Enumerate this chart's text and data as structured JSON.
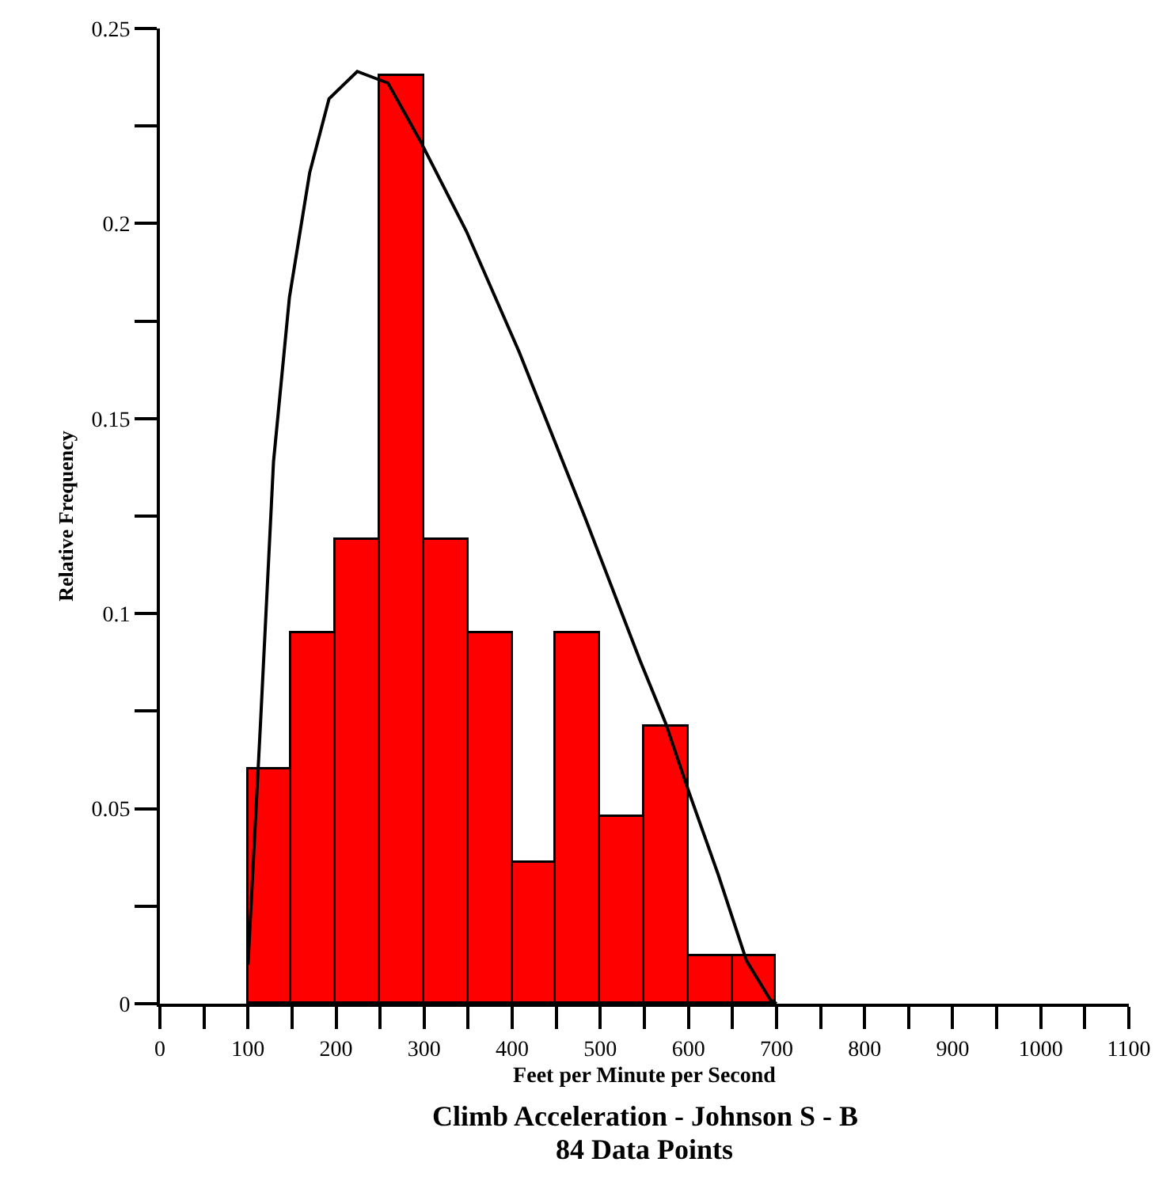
{
  "chart_data": {
    "type": "histogram",
    "title": "Climb Acceleration - Johnson S - B",
    "subtitle": "84 Data Points",
    "xlabel": "Feet per Minute per Second",
    "ylabel": "Relative Frequency",
    "bins": [
      100,
      150,
      200,
      250,
      300,
      350,
      400,
      450,
      500,
      550,
      600,
      650,
      700
    ],
    "series": [
      {
        "color": "#ff0000",
        "values": [
          0.06,
          0.095,
          0.119,
          0.238,
          0.119,
          0.095,
          0.036,
          0.095,
          0.048,
          0.071,
          0.012,
          0.012
        ]
      },
      {
        "type": "line",
        "color": "#000000",
        "x": [
          100,
          114,
          129,
          147,
          170,
          192,
          224,
          259,
          296,
          348,
          408,
          482,
          545,
          574,
          601,
          634,
          666,
          693,
          700
        ],
        "values": [
          0.01,
          0.071,
          0.139,
          0.181,
          0.213,
          0.232,
          0.239,
          0.236,
          0.221,
          0.198,
          0.167,
          0.125,
          0.088,
          0.072,
          0.054,
          0.033,
          0.011,
          0.001,
          0
        ]
      }
    ],
    "xlim": [
      0,
      1100
    ],
    "xticks": [
      0,
      {
        "value": 50,
        "label": null
      },
      100,
      {
        "value": 150,
        "label": null
      },
      200,
      {
        "value": 250,
        "label": null
      },
      300,
      {
        "value": 350,
        "label": null
      },
      400,
      {
        "value": 450,
        "label": null
      },
      500,
      {
        "value": 550,
        "label": null
      },
      600,
      {
        "value": 650,
        "label": null
      },
      700,
      {
        "value": 750,
        "label": null
      },
      800,
      {
        "value": 850,
        "label": null
      },
      900,
      {
        "value": 950,
        "label": null
      },
      1000,
      {
        "value": 1050,
        "label": null
      },
      1100
    ],
    "ylim": [
      0,
      0.25
    ],
    "yticks": [
      0,
      {
        "value": 0.025,
        "label": null
      },
      0.05,
      {
        "value": 0.075,
        "label": null
      },
      0.1,
      {
        "value": 0.125,
        "label": null
      },
      0.15,
      {
        "value": 0.175,
        "label": null
      },
      0.2,
      {
        "value": 0.225,
        "label": null
      },
      0.25
    ]
  }
}
